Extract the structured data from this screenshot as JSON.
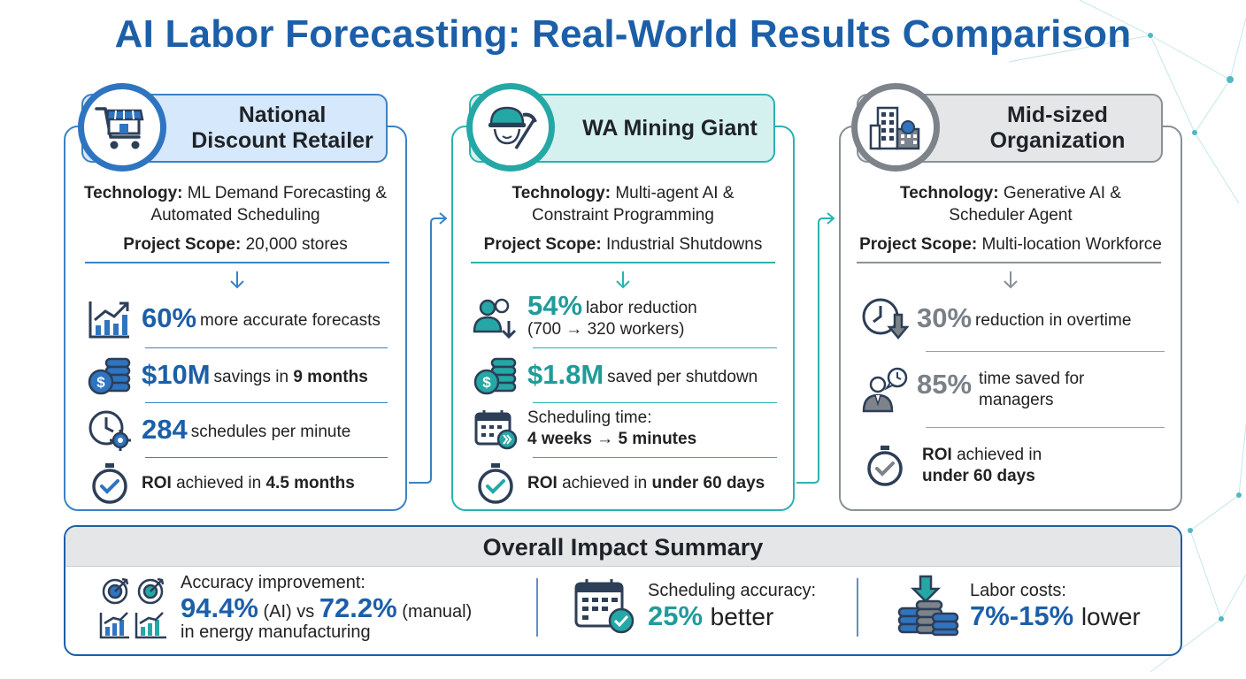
{
  "title": "AI Labor Forecasting: Real-World Results Comparison",
  "colors": {
    "blue": "#1c5fa8",
    "teal": "#1f9c99",
    "gray": "#7a8087"
  },
  "cards": [
    {
      "name": "National Discount Retailer",
      "icon": "store-cart-icon",
      "technology_label": "Technology:",
      "technology": "ML Demand Forecasting & Automated Scheduling",
      "scope_label": "Project Scope:",
      "scope": "20,000 stores",
      "metrics": [
        {
          "icon": "growth-chart-icon",
          "value": "60%",
          "text": "more accurate forecasts"
        },
        {
          "icon": "dollar-coins-icon",
          "value": "$10M",
          "text": "savings in",
          "bold": "9 months"
        },
        {
          "icon": "clock-gear-icon",
          "value": "284",
          "text": "schedules per minute"
        },
        {
          "icon": "stopwatch-check-icon",
          "bold_lead": "ROI",
          "text": "achieved in",
          "bold": "4.5 months"
        }
      ]
    },
    {
      "name": "WA Mining Giant",
      "icon": "miner-helmet-pickaxe-icon",
      "technology_label": "Technology:",
      "technology": "Multi-agent AI & Constraint Programming",
      "scope_label": "Project Scope:",
      "scope": "Industrial Shutdowns",
      "metrics": [
        {
          "icon": "workers-down-icon",
          "value": "54%",
          "text": "labor reduction",
          "sub": "(700 → 320 workers)"
        },
        {
          "icon": "dollar-coins-icon",
          "value": "$1.8M",
          "text": "saved per shutdown"
        },
        {
          "icon": "calendar-fast-icon",
          "text": "Scheduling time:",
          "bold": "4 weeks → 5 minutes"
        },
        {
          "icon": "stopwatch-check-icon",
          "bold_lead": "ROI",
          "text": "achieved in",
          "bold": "under 60 days"
        }
      ]
    },
    {
      "name": "Mid-sized Organization",
      "icon": "office-buildings-icon",
      "technology_label": "Technology:",
      "technology": "Generative AI & Scheduler Agent",
      "scope_label": "Project Scope:",
      "scope": "Multi-location Workforce",
      "metrics": [
        {
          "icon": "clock-down-icon",
          "value": "30%",
          "text": "reduction in overtime"
        },
        {
          "icon": "manager-clock-icon",
          "value": "85%",
          "text": "time saved for",
          "sub": "managers"
        },
        {
          "icon": "stopwatch-check-icon",
          "bold_lead": "ROI",
          "text": "achieved in",
          "bold": "under 60 days"
        }
      ]
    }
  ],
  "summary": {
    "title": "Overall Impact Summary",
    "items": [
      {
        "icon": "targets-charts-icon",
        "label": "Accuracy improvement:",
        "value_a": "94.4%",
        "mid_a": "(AI) vs",
        "value_b": "72.2%",
        "mid_b": "(manual)",
        "note": "in energy manufacturing"
      },
      {
        "icon": "calendar-check-icon",
        "label": "Scheduling accuracy:",
        "value": "25%",
        "suffix": "better"
      },
      {
        "icon": "coins-down-icon",
        "label": "Labor costs:",
        "value": "7%-15%",
        "suffix": "lower"
      }
    ]
  }
}
